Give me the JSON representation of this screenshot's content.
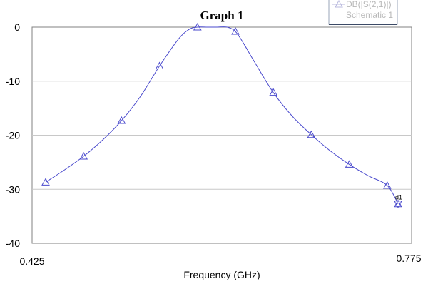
{
  "chart_data": {
    "type": "line",
    "title": "Graph 1",
    "xlabel": "Frequency (GHz)",
    "ylabel": "",
    "xlim": [
      0.425,
      0.775
    ],
    "ylim": [
      -40,
      0
    ],
    "x_tick_labels": [
      "0.425",
      "0.775"
    ],
    "y_ticks": [
      0,
      -10,
      -20,
      -30,
      -40
    ],
    "y_tick_labels": [
      "0",
      "-10",
      "-20",
      "-30",
      "-40"
    ],
    "grid": true,
    "legend": {
      "position": "top-right",
      "entries": [
        "DB(|S(2,1)|)",
        "Schematic 1"
      ]
    },
    "series": [
      {
        "name": "DB(|S(2,1)|)",
        "color": "#4a4acd",
        "marker": "triangle",
        "x": [
          0.4375,
          0.4725,
          0.5075,
          0.5425,
          0.5775,
          0.6125,
          0.6475,
          0.6825,
          0.7175,
          0.7525,
          0.7625
        ],
        "y": [
          -28.7,
          -23.9,
          -17.3,
          -7.2,
          0.0,
          -0.8,
          -12.1,
          -19.9,
          -25.4,
          -29.3,
          -32.7
        ],
        "marker_at": [
          0,
          1,
          2,
          3,
          4,
          5,
          6,
          7,
          8,
          9,
          10
        ]
      }
    ],
    "curve": {
      "x": [
        0.4375,
        0.455,
        0.4725,
        0.49,
        0.5075,
        0.525,
        0.5425,
        0.56,
        0.57,
        0.5775,
        0.587,
        0.595,
        0.605,
        0.6125,
        0.62,
        0.63,
        0.6475,
        0.665,
        0.6825,
        0.7,
        0.7175,
        0.735,
        0.7525,
        0.7625
      ],
      "y": [
        -28.7,
        -26.4,
        -23.9,
        -20.9,
        -17.3,
        -12.8,
        -7.2,
        -2.2,
        -0.4,
        0.0,
        0.0,
        0.0,
        0.0,
        -0.8,
        -3.0,
        -6.4,
        -12.1,
        -16.5,
        -19.9,
        -22.9,
        -25.4,
        -27.5,
        -29.3,
        -32.7
      ]
    },
    "marker_annotation": "d1"
  }
}
